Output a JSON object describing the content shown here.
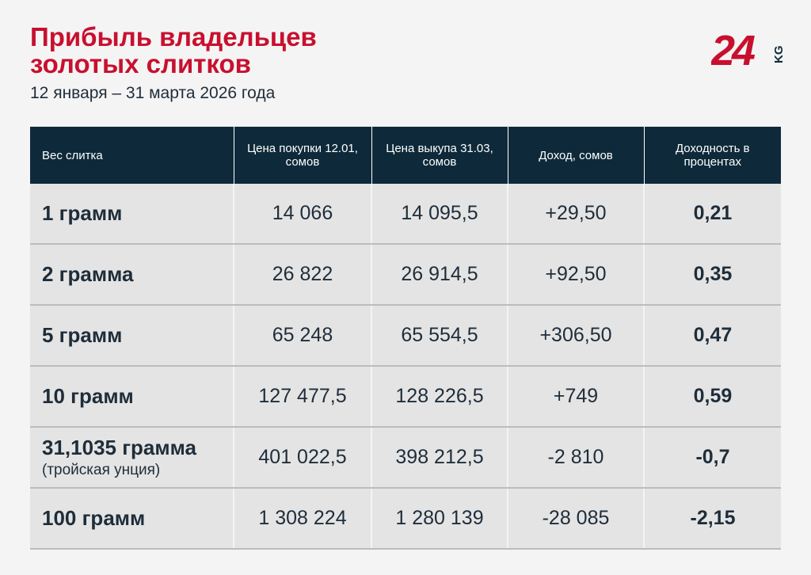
{
  "header": {
    "title_line1": "Прибыль владельцев",
    "title_line2": "золотых слитков",
    "subtitle": "12 января – 31 марта 2026 года"
  },
  "logo": {
    "number": "24",
    "suffix": "KG",
    "brand_color": "#c8102e"
  },
  "colors": {
    "accent": "#c8102e",
    "header_bg": "#0e2a3a",
    "row_bg": "#e4e4e4",
    "text": "#1f2d3a"
  },
  "chart_data": {
    "type": "table",
    "columns": [
      "Вес слитка",
      "Цена покупки 12.01, сомов",
      "Цена выкупа 31.03, сомов",
      "Доход, сомов",
      "Доходность в процентах"
    ],
    "rows": [
      {
        "weight": "1 грамм",
        "note": "",
        "buy": "14 066",
        "sell": "14 095,5",
        "income": "+29,50",
        "pct": "0,21"
      },
      {
        "weight": "2 грамма",
        "note": "",
        "buy": "26 822",
        "sell": "26 914,5",
        "income": "+92,50",
        "pct": "0,35"
      },
      {
        "weight": "5 грамм",
        "note": "",
        "buy": "65 248",
        "sell": "65 554,5",
        "income": "+306,50",
        "pct": "0,47"
      },
      {
        "weight": "10 грамм",
        "note": "",
        "buy": "127 477,5",
        "sell": "128 226,5",
        "income": "+749",
        "pct": "0,59"
      },
      {
        "weight": "31,1035 грамма",
        "note": "(тройская унция)",
        "buy": "401 022,5",
        "sell": "398 212,5",
        "income": "-2 810",
        "pct": "-0,7"
      },
      {
        "weight": "100 грамм",
        "note": "",
        "buy": "1 308 224",
        "sell": "1 280 139",
        "income": "-28 085",
        "pct": "-2,15"
      }
    ]
  }
}
